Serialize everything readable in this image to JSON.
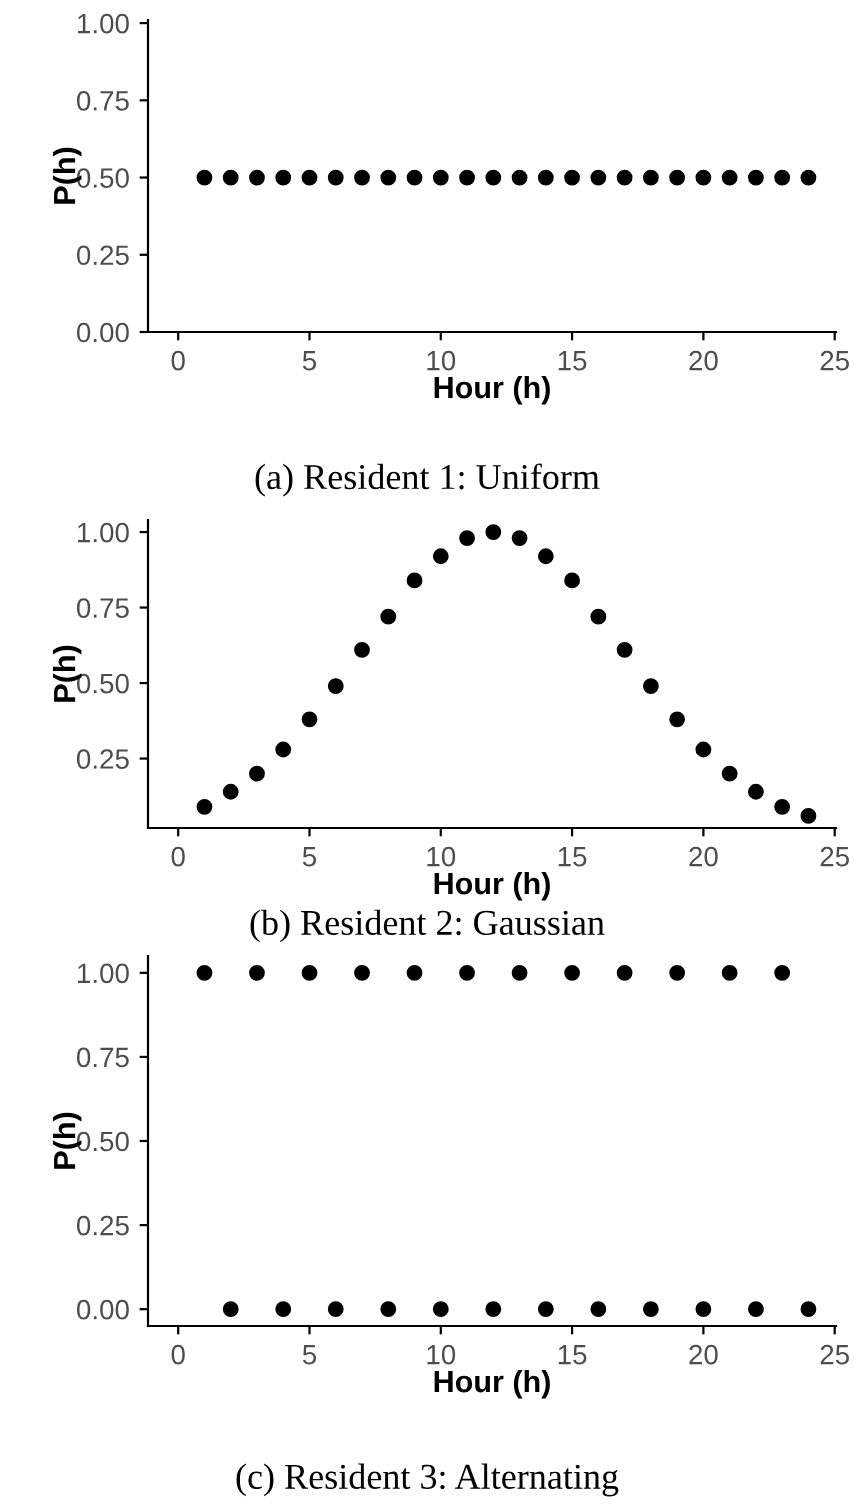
{
  "chart_data": [
    {
      "type": "scatter",
      "title": "(a) Resident 1: Uniform",
      "xlabel": "Hour (h)",
      "ylabel": "P(h)",
      "x": [
        1,
        2,
        3,
        4,
        5,
        6,
        7,
        8,
        9,
        10,
        11,
        12,
        13,
        14,
        15,
        16,
        17,
        18,
        19,
        20,
        21,
        22,
        23,
        24
      ],
      "series": [
        {
          "color": "#000000",
          "values": [
            0.5,
            0.5,
            0.5,
            0.5,
            0.5,
            0.5,
            0.5,
            0.5,
            0.5,
            0.5,
            0.5,
            0.5,
            0.5,
            0.5,
            0.5,
            0.5,
            0.5,
            0.5,
            0.5,
            0.5,
            0.5,
            0.5,
            0.5,
            0.5
          ]
        }
      ],
      "xlim": [
        -1.15,
        25.05
      ],
      "ylim": [
        0,
        1.01
      ],
      "xticks": [
        0,
        5,
        10,
        15,
        20,
        25
      ],
      "yticks": [
        {
          "value": 0,
          "label": "0.00"
        },
        {
          "value": 0.25,
          "label": "0.25"
        },
        {
          "value": 0.5,
          "label": "0.50"
        },
        {
          "value": 0.75,
          "label": "0.75"
        },
        {
          "value": 1,
          "label": "1.00"
        }
      ],
      "grid": false,
      "marker": "circle"
    },
    {
      "type": "scatter",
      "title": "(b) Resident 2: Gaussian",
      "xlabel": "Hour (h)",
      "ylabel": "P(h)",
      "x": [
        1,
        2,
        3,
        4,
        5,
        6,
        7,
        8,
        9,
        10,
        11,
        12,
        13,
        14,
        15,
        16,
        17,
        18,
        19,
        20,
        21,
        22,
        23,
        24
      ],
      "series": [
        {
          "color": "#000000",
          "values": [
            0.09,
            0.14,
            0.2,
            0.28,
            0.38,
            0.49,
            0.61,
            0.72,
            0.84,
            0.92,
            0.98,
            1.0,
            0.98,
            0.92,
            0.84,
            0.72,
            0.61,
            0.49,
            0.38,
            0.28,
            0.2,
            0.14,
            0.09,
            0.06
          ]
        }
      ],
      "xlim": [
        -1.15,
        25.05
      ],
      "ylim": [
        0.02,
        1.04
      ],
      "xticks": [
        0,
        5,
        10,
        15,
        20,
        25
      ],
      "yticks": [
        {
          "value": 0.25,
          "label": "0.25"
        },
        {
          "value": 0.5,
          "label": "0.50"
        },
        {
          "value": 0.75,
          "label": "0.75"
        },
        {
          "value": 1,
          "label": "1.00"
        }
      ],
      "grid": false,
      "marker": "circle"
    },
    {
      "type": "scatter",
      "title": "(c) Resident 3: Alternating",
      "xlabel": "Hour (h)",
      "ylabel": "P(h)",
      "x": [
        1,
        2,
        3,
        4,
        5,
        6,
        7,
        8,
        9,
        10,
        11,
        12,
        13,
        14,
        15,
        16,
        17,
        18,
        19,
        20,
        21,
        22,
        23,
        24
      ],
      "series": [
        {
          "color": "#000000",
          "values": [
            1,
            0,
            1,
            0,
            1,
            0,
            1,
            0,
            1,
            0,
            1,
            0,
            1,
            0,
            1,
            0,
            1,
            0,
            1,
            0,
            1,
            0,
            1,
            0
          ]
        }
      ],
      "xlim": [
        -1.15,
        25.05
      ],
      "ylim": [
        -0.05,
        1.05
      ],
      "xticks": [
        0,
        5,
        10,
        15,
        20,
        25
      ],
      "yticks": [
        {
          "value": 0,
          "label": "0.00"
        },
        {
          "value": 0.25,
          "label": "0.25"
        },
        {
          "value": 0.5,
          "label": "0.50"
        },
        {
          "value": 0.75,
          "label": "0.75"
        },
        {
          "value": 1,
          "label": "1.00"
        }
      ],
      "grid": false,
      "marker": "circle"
    }
  ]
}
